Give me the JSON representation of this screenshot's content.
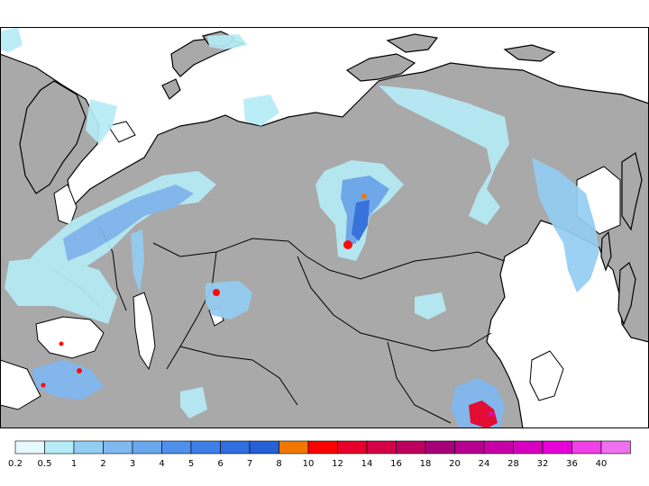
{
  "map": {
    "land_color": "#a9a9a9",
    "ocean_color": "#ffffff",
    "border_color": "#000000"
  },
  "legend": {
    "entries": [
      {
        "label": "0.2",
        "color": "#e6f9ff"
      },
      {
        "label": "0.5",
        "color": "#b6ecf7"
      },
      {
        "label": "1",
        "color": "#94cdf2"
      },
      {
        "label": "2",
        "color": "#80b8f0"
      },
      {
        "label": "3",
        "color": "#6aa8ee"
      },
      {
        "label": "4",
        "color": "#4f90ec"
      },
      {
        "label": "5",
        "color": "#3f7fe8"
      },
      {
        "label": "6",
        "color": "#2f6fe0"
      },
      {
        "label": "7",
        "color": "#2560d6"
      },
      {
        "label": "8",
        "color": "#f07800"
      },
      {
        "label": "10",
        "color": "#ff0000"
      },
      {
        "label": "12",
        "color": "#e8002a"
      },
      {
        "label": "14",
        "color": "#d60048"
      },
      {
        "label": "16",
        "color": "#c00060"
      },
      {
        "label": "18",
        "color": "#a80078"
      },
      {
        "label": "20",
        "color": "#b80090"
      },
      {
        "label": "24",
        "color": "#c800a8"
      },
      {
        "label": "28",
        "color": "#d800c0"
      },
      {
        "label": "32",
        "color": "#e800d8"
      },
      {
        "label": "36",
        "color": "#f040e8"
      },
      {
        "label": "40",
        "color": "#f070f0"
      }
    ]
  }
}
